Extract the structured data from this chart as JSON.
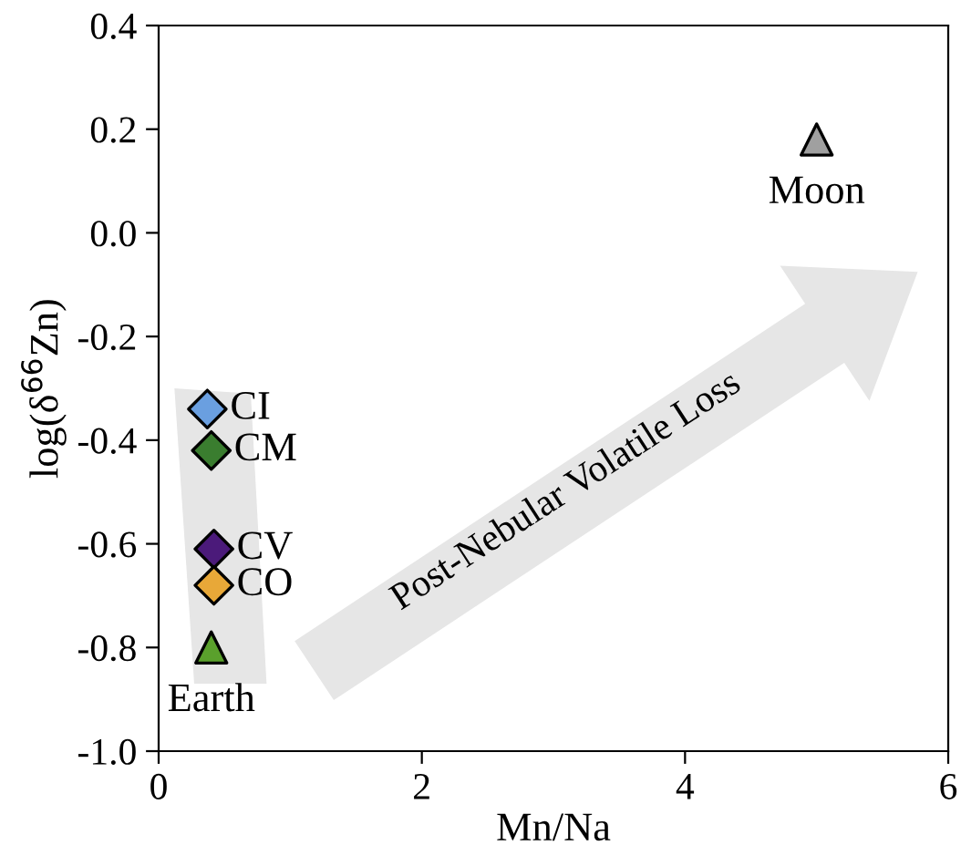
{
  "chart_data": {
    "type": "scatter",
    "xlabel": "Mn/Na",
    "ylabel": "log(δ$^{66}$Zn)",
    "xlim": [
      0,
      6
    ],
    "ylim": [
      -1.0,
      0.4
    ],
    "xticks": [
      0,
      2,
      4,
      6
    ],
    "yticks": [
      {
        "value": -1.0,
        "label": "-1.0"
      },
      {
        "value": -0.8,
        "label": "-0.8"
      },
      {
        "value": -0.6,
        "label": "-0.6"
      },
      {
        "value": -0.4,
        "label": "-0.4"
      },
      {
        "value": -0.2,
        "label": "-0.2"
      },
      {
        "value": 0.0,
        "label": "0.0"
      },
      {
        "value": 0.2,
        "label": "0.2"
      },
      {
        "value": 0.4,
        "label": "0.4"
      }
    ],
    "grid": false,
    "legend": false,
    "annotations": [
      "Post-Nebular Volatile Loss"
    ],
    "series": [
      {
        "name": "CI",
        "color": "#6a9fe0",
        "marker": "diamond",
        "x": [
          0.37
        ],
        "values": [
          -0.34
        ]
      },
      {
        "name": "CM",
        "color": "#3a7d2f",
        "marker": "diamond",
        "x": [
          0.4
        ],
        "values": [
          -0.42
        ]
      },
      {
        "name": "CV",
        "color": "#4b1a7a",
        "marker": "diamond",
        "x": [
          0.42
        ],
        "values": [
          -0.61
        ]
      },
      {
        "name": "CO",
        "color": "#e8a838",
        "marker": "diamond",
        "x": [
          0.42
        ],
        "values": [
          -0.68
        ]
      },
      {
        "name": "Earth",
        "color": "#5aa02c",
        "marker": "triangle",
        "x": [
          0.4
        ],
        "values": [
          -0.8
        ]
      },
      {
        "name": "Moon",
        "color": "#a0a0a0",
        "marker": "triangle",
        "x": [
          5.0
        ],
        "values": [
          0.18
        ]
      }
    ]
  }
}
